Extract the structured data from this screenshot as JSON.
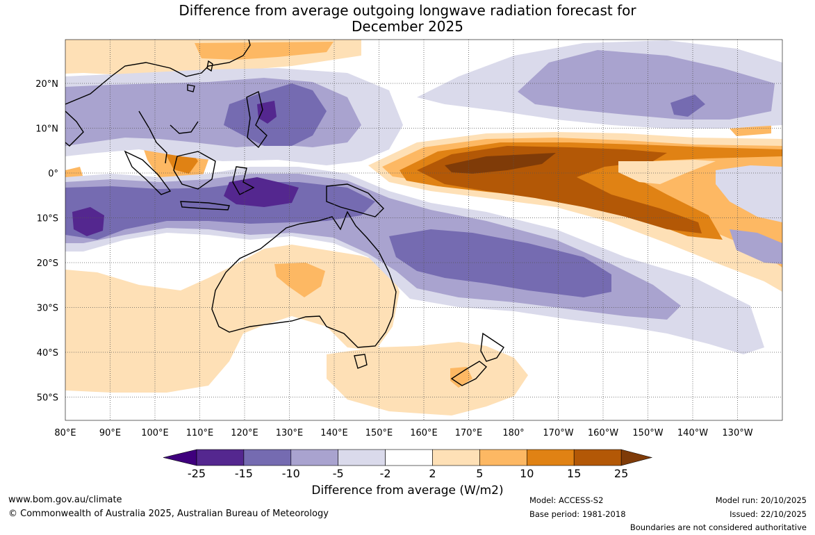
{
  "title": {
    "line1": "Difference from average outgoing longwave radiation forecast for",
    "line2": "December 2025"
  },
  "map": {
    "lon_labels": [
      "80°E",
      "90°E",
      "100°E",
      "110°E",
      "120°E",
      "130°E",
      "140°E",
      "150°E",
      "160°E",
      "170°E",
      "180°",
      "170°W",
      "160°W",
      "150°W",
      "140°W",
      "130°W"
    ],
    "lat_labels": [
      "20°N",
      "10°N",
      "0°",
      "10°S",
      "20°S",
      "30°S",
      "40°S",
      "50°S"
    ]
  },
  "colorbar": {
    "ticks": [
      "-25",
      "-15",
      "-10",
      "-5",
      "-2",
      "2",
      "5",
      "10",
      "15",
      "25"
    ],
    "colors": [
      "#54278f",
      "#756bb1",
      "#a9a3cf",
      "#dadaeb",
      "#ffffff",
      "#fee0b6",
      "#fdb863",
      "#e08214",
      "#b35806"
    ],
    "under_color": "#3f007d",
    "over_color": "#7f3b08",
    "title": "Difference from average (W/m2)"
  },
  "footer": {
    "website": "www.bom.gov.au/climate",
    "copyright": "© Commonwealth of Australia 2025, Australian Bureau of Meteorology",
    "model": "Model: ACCESS-S2",
    "base_period": "Base period: 1981-2018",
    "model_run": "Model run: 20/10/2025",
    "issued": "Issued: 22/10/2025",
    "disclaimer": "Boundaries are not considered authoritative"
  }
}
